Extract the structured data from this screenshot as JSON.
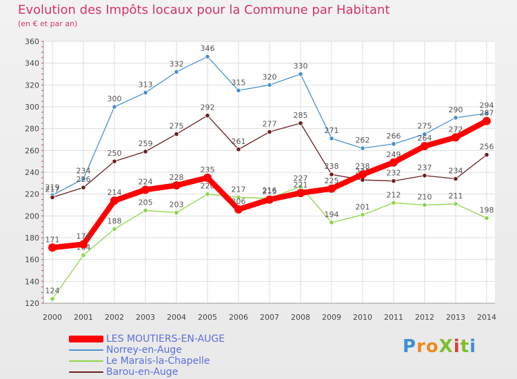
{
  "title": "Evolution des Impôts locaux pour la Commune par Habitant",
  "subtitle": "(en € et par an)",
  "logo": "ProXiti",
  "chart_data": {
    "type": "line",
    "title": "Evolution des Impôts locaux pour la Commune par Habitant",
    "subtitle": "(en € et par an)",
    "xlabel": "",
    "ylabel": "",
    "ylim": [
      120,
      360
    ],
    "yticks": [
      120,
      140,
      160,
      180,
      200,
      220,
      240,
      260,
      280,
      300,
      320,
      340,
      360
    ],
    "x": [
      "2000",
      "2001",
      "2002",
      "2003",
      "2004",
      "2005",
      "2006",
      "2007",
      "2008",
      "2009",
      "2010",
      "2011",
      "2012",
      "2013",
      "2014"
    ],
    "grid": true,
    "legend_position": "bottom-left",
    "series": [
      {
        "name": "Norrey-en-Auge",
        "color": "#4a90d0",
        "values": [
          219,
          234,
          300,
          313,
          332,
          346,
          315,
          320,
          330,
          271,
          262,
          266,
          275,
          290,
          294
        ]
      },
      {
        "name": "Le Marais-la-Chapelle",
        "color": "#8fd44a",
        "values": [
          124,
          164,
          188,
          205,
          203,
          220,
          217,
          216,
          227,
          194,
          201,
          212,
          210,
          211,
          198
        ]
      },
      {
        "name": "Barou-en-Auge",
        "color": "#6b1f1f",
        "values": [
          217,
          226,
          250,
          259,
          275,
          292,
          261,
          277,
          285,
          238,
          233,
          232,
          237,
          234,
          256
        ]
      },
      {
        "name": "LES MOUTIERS-EN-AUGE",
        "color": "#ff0000",
        "values": [
          171,
          174,
          214,
          224,
          228,
          235,
          206,
          215,
          221,
          225,
          238,
          249,
          264,
          272,
          287
        ]
      }
    ]
  }
}
